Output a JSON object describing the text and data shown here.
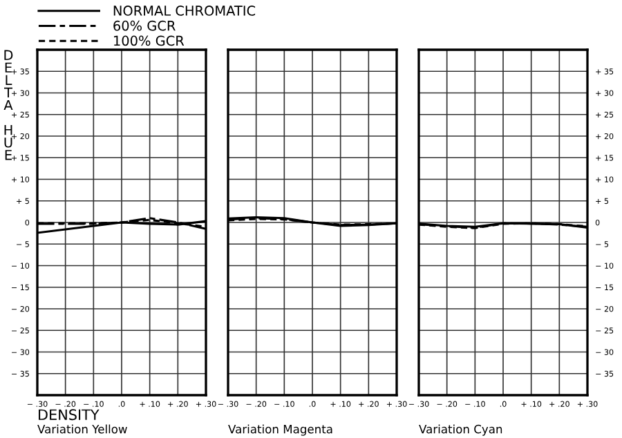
{
  "chart_data": [
    {
      "type": "line",
      "ylabel": "DELTA HUE",
      "xlabel": "Variation Yellow",
      "annotations": [
        "DENSITY"
      ],
      "legend": "top",
      "grid": true,
      "marker": "none",
      "x": [
        -0.3,
        -0.2,
        -0.1,
        0,
        0.1,
        0.2,
        0.3
      ],
      "xlim": [
        -0.3,
        0.3
      ],
      "xticks": [
        {
          "value": -0.3,
          "label": "− .30"
        },
        {
          "value": -0.2,
          "label": "− .20"
        },
        {
          "value": -0.1,
          "label": "− .10"
        },
        {
          "value": 0,
          "label": ".0"
        },
        {
          "value": 0.1,
          "label": "+ .10"
        },
        {
          "value": 0.2,
          "label": "+ .20"
        },
        {
          "value": 0.3,
          "label": "+ .30"
        }
      ],
      "ylim": [
        -40,
        40
      ],
      "yticks": [
        {
          "value": -35,
          "label": "− 35"
        },
        {
          "value": -30,
          "label": "− 30"
        },
        {
          "value": -25,
          "label": "− 25"
        },
        {
          "value": -20,
          "label": "− 20"
        },
        {
          "value": -15,
          "label": "− 15"
        },
        {
          "value": -10,
          "label": "− 10"
        },
        {
          "value": -5,
          "label": "− 5"
        },
        0,
        {
          "value": 5,
          "label": "+ 5"
        },
        {
          "value": 10,
          "label": "+ 10"
        },
        {
          "value": 15,
          "label": "+ 15"
        },
        {
          "value": 20,
          "label": "+ 20"
        },
        {
          "value": 25,
          "label": "+ 25"
        },
        {
          "value": 30,
          "label": "+ 30"
        },
        {
          "value": 35,
          "label": "+ 35"
        }
      ],
      "series": [
        {
          "name": "NORMAL CHROMATIC",
          "color": "#000000",
          "line_style": "solid",
          "values": [
            -2.4,
            -1.6,
            -0.8,
            0,
            -0.3,
            -0.5,
            0.3
          ]
        },
        {
          "name": "60% GCR",
          "color": "#000000",
          "line_style": "dashdot",
          "values": [
            -0.3,
            -0.3,
            -0.3,
            0,
            1.0,
            0,
            -1.5
          ]
        },
        {
          "name": "100% GCR",
          "color": "#000000",
          "line_style": "dashed",
          "values": [
            -0.2,
            -0.2,
            -0.2,
            0,
            0.6,
            -0.2,
            -1.0
          ]
        }
      ]
    },
    {
      "type": "line",
      "xlabel": "Variation Magenta",
      "grid": true,
      "marker": "none",
      "tick_labels": "x",
      "x": [
        -0.3,
        -0.2,
        -0.1,
        0,
        0.1,
        0.2,
        0.3
      ],
      "xlim": [
        -0.3,
        0.3
      ],
      "xticks": [
        {
          "value": -0.3,
          "label": "− .30"
        },
        {
          "value": -0.2,
          "label": "− .20"
        },
        {
          "value": -0.1,
          "label": "− .10"
        },
        {
          "value": 0,
          "label": ".0"
        },
        {
          "value": 0.1,
          "label": "+ .10"
        },
        {
          "value": 0.2,
          "label": "+ .20"
        },
        {
          "value": 0.3,
          "label": "+ .30"
        }
      ],
      "ylim": [
        -40,
        40
      ],
      "yticks": [
        {
          "value": -35,
          "label": null
        },
        {
          "value": -30,
          "label": null
        },
        {
          "value": -25,
          "label": null
        },
        {
          "value": -20,
          "label": null
        },
        {
          "value": -15,
          "label": null
        },
        {
          "value": -10,
          "label": null
        },
        {
          "value": -5,
          "label": null
        },
        {
          "value": 0,
          "label": null
        },
        {
          "value": 5,
          "label": null
        },
        {
          "value": 10,
          "label": null
        },
        {
          "value": 15,
          "label": null
        },
        {
          "value": 20,
          "label": null
        },
        {
          "value": 25,
          "label": null
        },
        {
          "value": 30,
          "label": null
        },
        {
          "value": 35,
          "label": null
        }
      ],
      "series": [
        {
          "color": "#000000",
          "line_style": "solid",
          "values": [
            0.9,
            1.2,
            1.0,
            0,
            -0.8,
            -0.6,
            -0.2
          ]
        },
        {
          "color": "#000000",
          "line_style": "dashdot",
          "values": [
            0.7,
            1.0,
            0.8,
            0,
            -0.6,
            -0.5,
            -0.2
          ]
        },
        {
          "color": "#000000",
          "line_style": "dashed",
          "values": [
            0.5,
            0.8,
            0.7,
            0,
            -0.5,
            -0.4,
            -0.2
          ]
        }
      ]
    },
    {
      "type": "line",
      "xlabel": "Variation Cyan",
      "grid": true,
      "marker": "none",
      "x": [
        -0.3,
        -0.2,
        -0.1,
        0,
        0.1,
        0.2,
        0.3
      ],
      "xlim": [
        -0.3,
        0.3
      ],
      "xticks": [
        {
          "value": -0.3,
          "label": "− .30"
        },
        {
          "value": -0.2,
          "label": "− .20"
        },
        {
          "value": -0.1,
          "label": "− .10"
        },
        {
          "value": 0,
          "label": ".0"
        },
        {
          "value": 0.1,
          "label": "+ .10"
        },
        {
          "value": 0.2,
          "label": "+ .20"
        },
        {
          "value": 0.3,
          "label": "+ .30"
        }
      ],
      "ylim": [
        -40,
        40
      ],
      "yticks": [
        {
          "value": -35,
          "label": "− 35"
        },
        {
          "value": -30,
          "label": "− 30"
        },
        {
          "value": -25,
          "label": "− 25"
        },
        {
          "value": -20,
          "label": "− 20"
        },
        {
          "value": -15,
          "label": "− 15"
        },
        {
          "value": -10,
          "label": "− 10"
        },
        {
          "value": -5,
          "label": "− 5"
        },
        0,
        {
          "value": 5,
          "label": "+ 5"
        },
        {
          "value": 10,
          "label": "+ 10"
        },
        {
          "value": 15,
          "label": "+ 15"
        },
        {
          "value": 20,
          "label": "+ 20"
        },
        {
          "value": 25,
          "label": "+ 25"
        },
        {
          "value": 30,
          "label": "+ 30"
        },
        {
          "value": 35,
          "label": "+ 35"
        }
      ],
      "series": [
        {
          "color": "#000000",
          "line_style": "solid",
          "values": [
            -0.3,
            -0.8,
            -1.0,
            -0.2,
            -0.3,
            -0.4,
            -1.2
          ]
        },
        {
          "color": "#000000",
          "line_style": "dashdot",
          "values": [
            -0.4,
            -0.9,
            -1.2,
            -0.2,
            -0.2,
            -0.5,
            -1.0
          ]
        },
        {
          "color": "#000000",
          "line_style": "dashed",
          "values": [
            -0.5,
            -1.0,
            -1.3,
            -0.3,
            -0.2,
            -0.4,
            -0.9
          ]
        }
      ]
    }
  ]
}
